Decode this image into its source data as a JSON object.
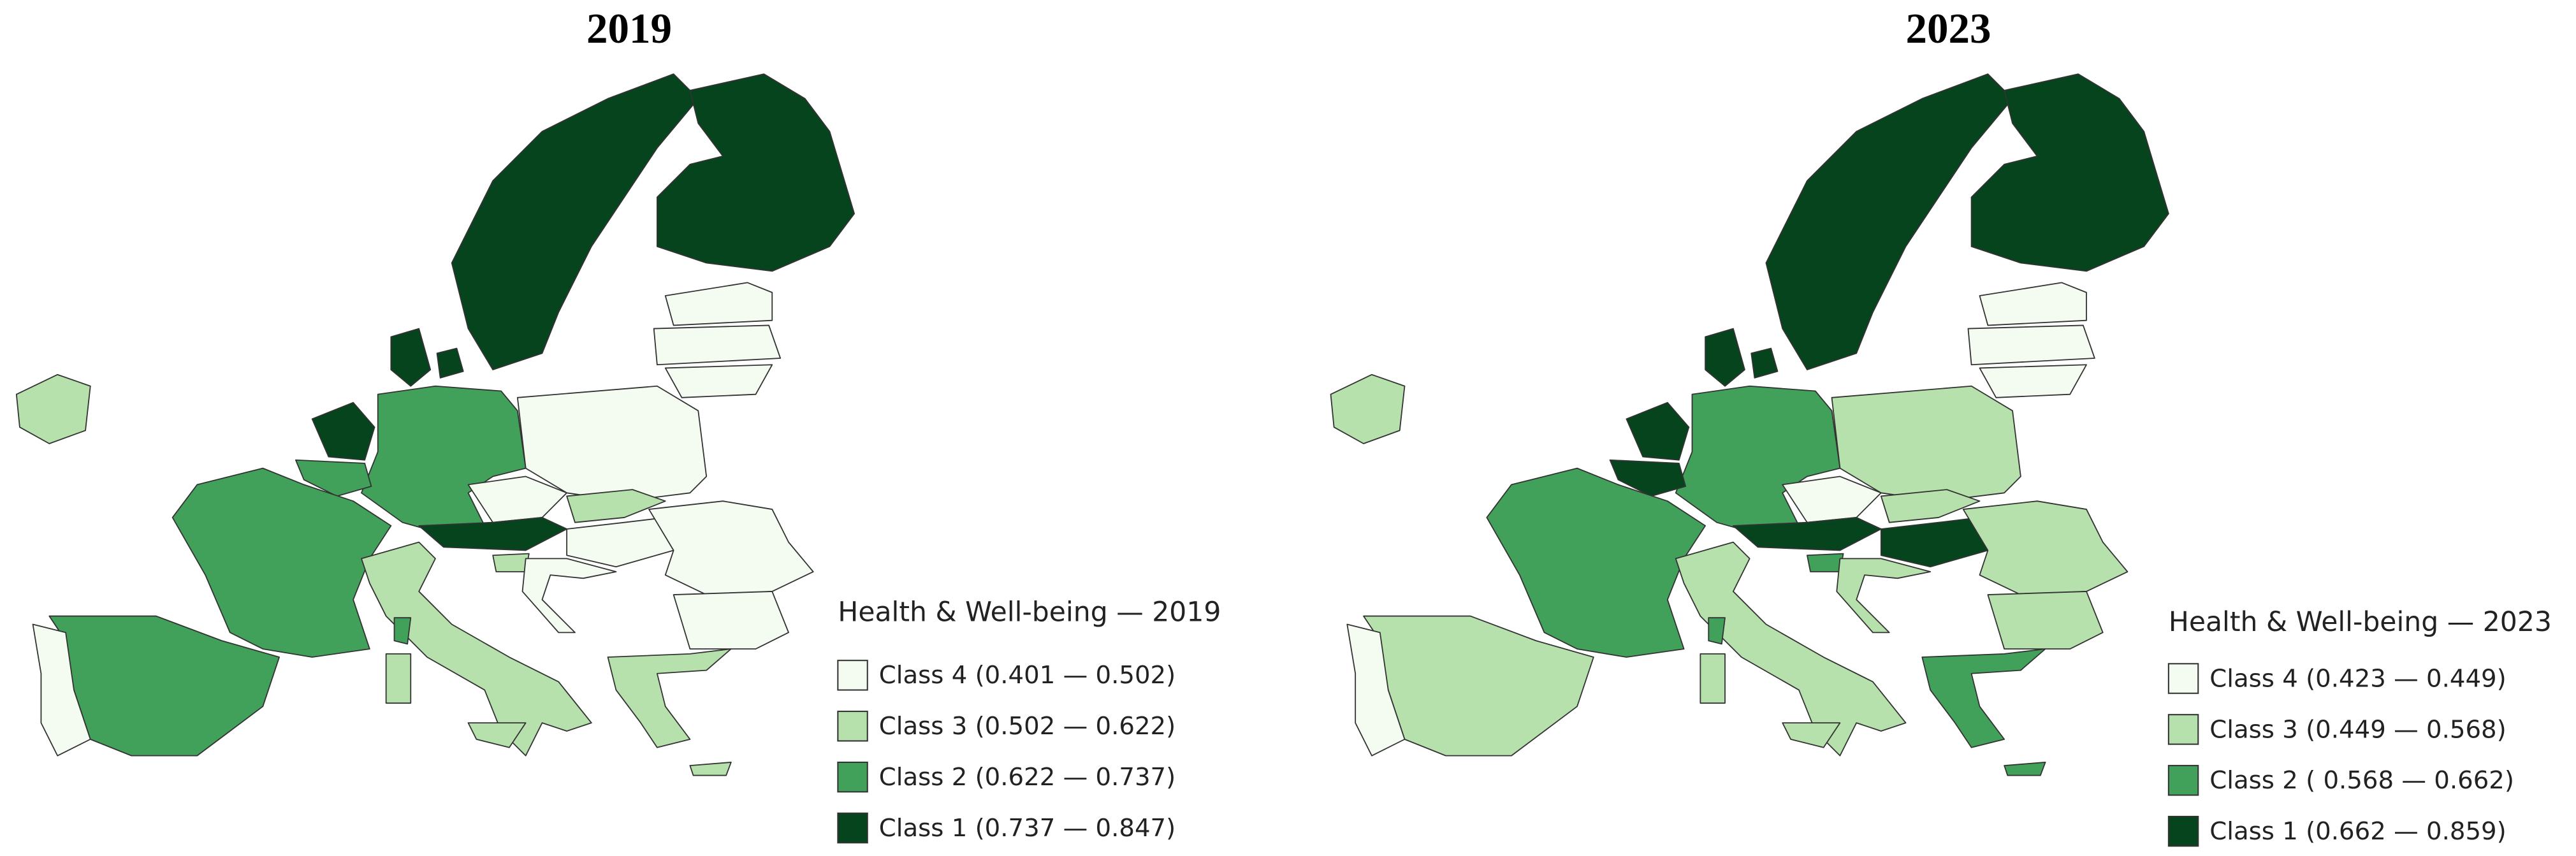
{
  "maps": [
    {
      "title": "2019",
      "legend": {
        "title": "Health & Well-being — 2019",
        "items": [
          {
            "label": "Class 4 (0.401 — 0.502)",
            "color": "#f4fbf1"
          },
          {
            "label": "Class 3 (0.502 — 0.622)",
            "color": "#b6e0ac"
          },
          {
            "label": "Class 2 (0.622 — 0.737)",
            "color": "#41a05a"
          },
          {
            "label": "Class 1 (0.737 — 0.847)",
            "color": "#05441c"
          }
        ]
      }
    },
    {
      "title": "2023",
      "legend": {
        "title": "Health & Well-being — 2023",
        "items": [
          {
            "label": "Class 4 (0.423 — 0.449)",
            "color": "#f4fbf1"
          },
          {
            "label": "Class 3 (0.449 — 0.568)",
            "color": "#b6e0ac"
          },
          {
            "label": "Class 2 ( 0.568 — 0.662)",
            "color": "#41a05a"
          },
          {
            "label": "Class 1 (0.662 — 0.859)",
            "color": "#05441c"
          }
        ]
      }
    }
  ]
}
